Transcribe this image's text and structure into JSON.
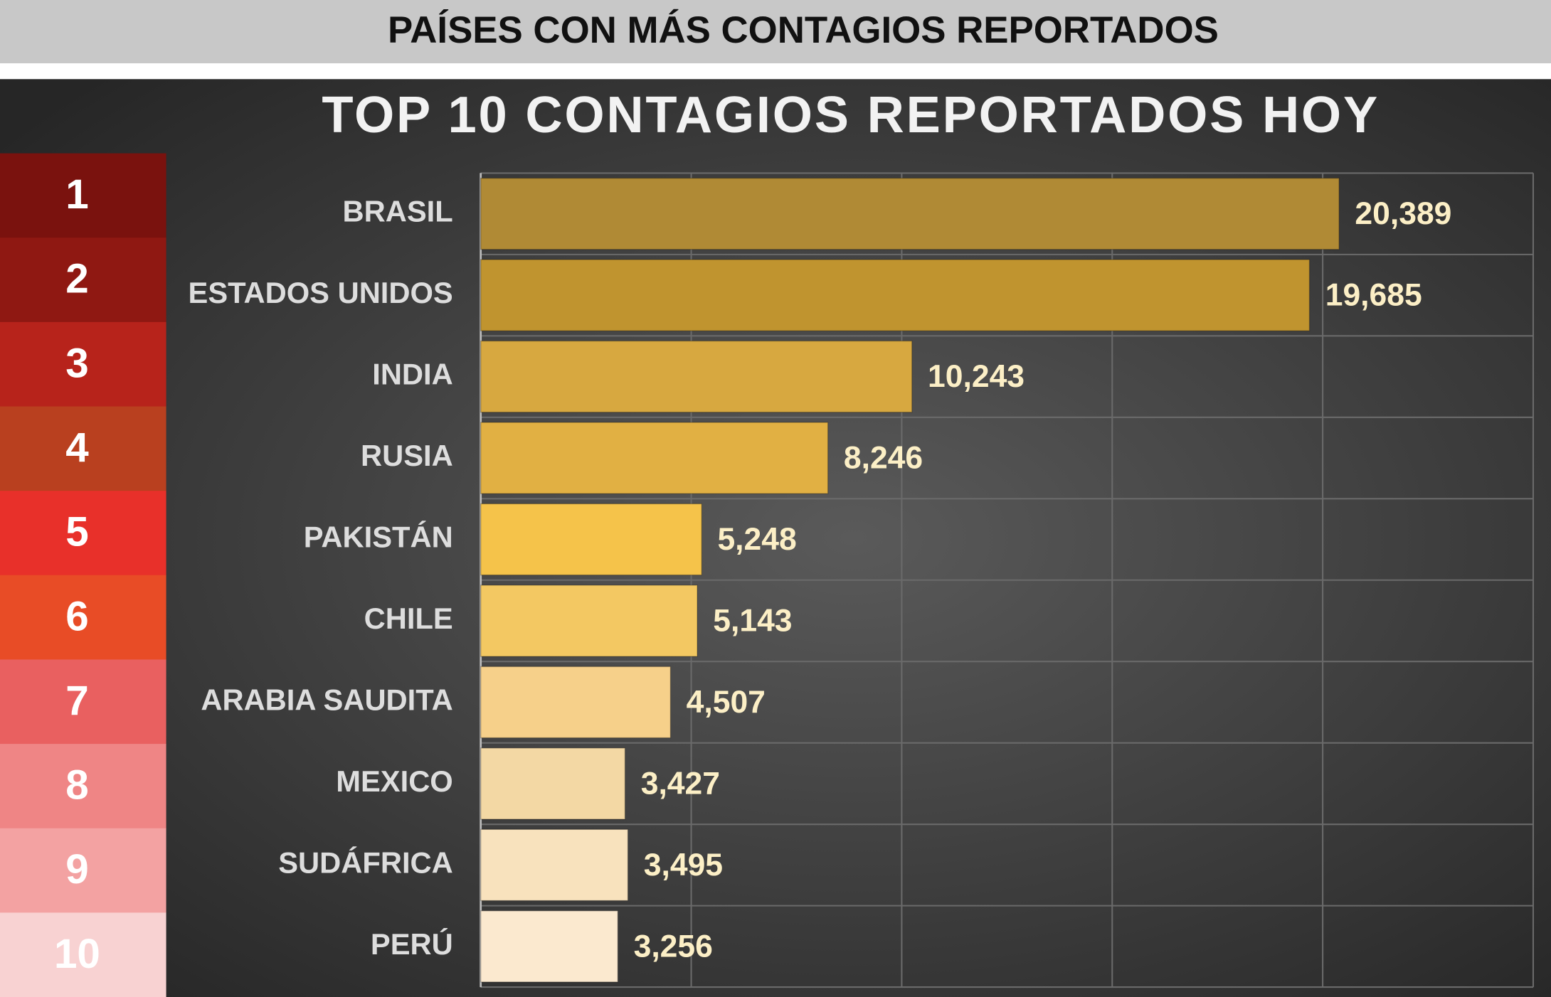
{
  "header": {
    "title": "PAÍSES CON MÁS CONTAGIOS REPORTADOS"
  },
  "chart_data": {
    "type": "bar",
    "orientation": "horizontal",
    "title": "TOP 10 CONTAGIOS REPORTADOS HOY",
    "ranks": [
      "1",
      "2",
      "3",
      "4",
      "5",
      "6",
      "7",
      "8",
      "9",
      "10"
    ],
    "rank_colors": [
      "#7a120e",
      "#8f1812",
      "#b7231b",
      "#b9401f",
      "#e8302a",
      "#e84c26",
      "#e96060",
      "#ef8585",
      "#f3a2a2",
      "#f8d2d2"
    ],
    "categories": [
      "BRASIL",
      "ESTADOS UNIDOS",
      "INDIA",
      "RUSIA",
      "PAKISTÁN",
      "CHILE",
      "ARABIA SAUDITA",
      "MEXICO",
      "SUDÁFRICA",
      "PERÚ"
    ],
    "values": [
      20389,
      19685,
      10243,
      8246,
      5248,
      5143,
      4507,
      3427,
      3495,
      3256
    ],
    "value_labels": [
      "20,389",
      "19,685",
      "10,243",
      "8,246",
      "5,248",
      "5,143",
      "4,507",
      "3,427",
      "3,495",
      "3,256"
    ],
    "colors": [
      "#b08a35",
      "#c0942f",
      "#d7a840",
      "#e1b043",
      "#f5c34a",
      "#f3c862",
      "#f6d08a",
      "#f3d8a4",
      "#f8e2bd",
      "#fbe9cf"
    ],
    "xlim": [
      0,
      25000
    ],
    "xticks": [
      0,
      5000,
      10000,
      15000,
      20000,
      25000
    ],
    "grid": true
  }
}
